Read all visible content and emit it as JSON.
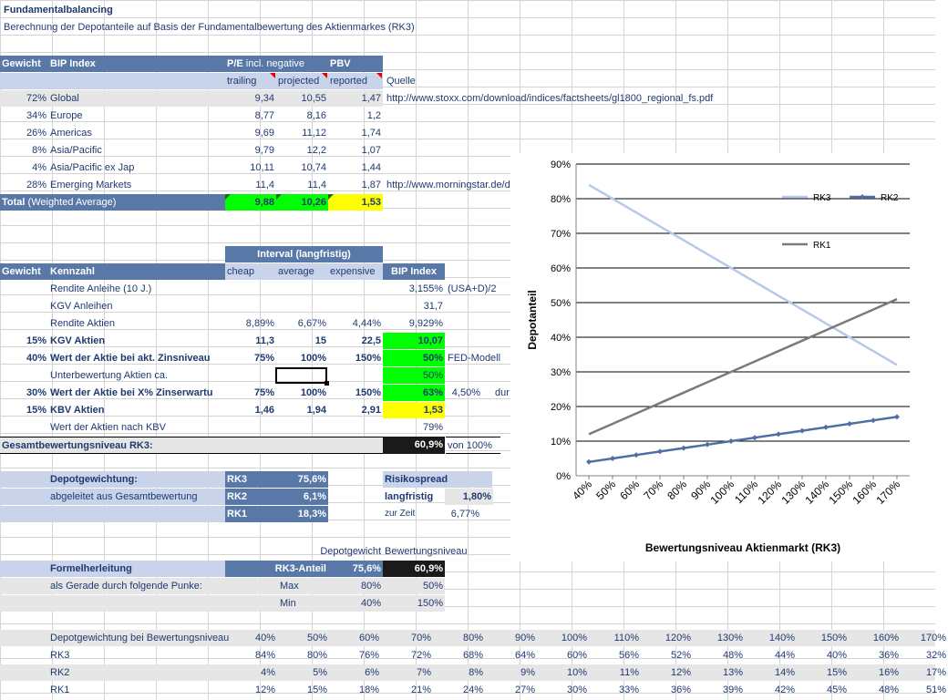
{
  "title": "Fundamentalbalancing",
  "subtitle": "Berechnung der Depotanteile auf Basis der Fundamentalbewertung des Aktienmarkes (RK3)",
  "t1": {
    "h_gewicht": "Gewicht",
    "h_bip": "BIP Index",
    "h_pe": "P/E",
    "h_pe_sub": "incl. negative",
    "h_pbv": "PBV",
    "h_trailing": "trailing",
    "h_projected": "projected",
    "h_reported": "reported",
    "h_quelle": "Quelle",
    "rows": [
      {
        "gewicht": "72%",
        "name": "Global",
        "trailing": "9,34",
        "projected": "10,55",
        "reported": "1,47",
        "quelle": "http://www.stoxx.com/download/indices/factsheets/gl1800_regional_fs.pdf"
      },
      {
        "gewicht": "34%",
        "name": "Europe",
        "trailing": "8,77",
        "projected": "8,16",
        "reported": "1,2",
        "quelle": ""
      },
      {
        "gewicht": "26%",
        "name": "Americas",
        "trailing": "9,69",
        "projected": "11,12",
        "reported": "1,74",
        "quelle": ""
      },
      {
        "gewicht": "8%",
        "name": "Asia/Pacific",
        "trailing": "9,79",
        "projected": "12,2",
        "reported": "1,07",
        "quelle": ""
      },
      {
        "gewicht": "4%",
        "name": "Asia/Pacific ex Jap",
        "trailing": "10,11",
        "projected": "10,74",
        "reported": "1,44",
        "quelle": ""
      },
      {
        "gewicht": "28%",
        "name": "Emerging Markets",
        "trailing": "11,4",
        "projected": "11,4",
        "reported": "1,87",
        "quelle": "http://www.morningstar.de/de"
      }
    ],
    "total_label": "Total",
    "total_sub": "(Weighted Average)",
    "total_trailing": "9,88",
    "total_projected": "10,26",
    "total_reported": "1,53"
  },
  "t2": {
    "interval": "Interval (langfristig)",
    "h_gewicht": "Gewicht",
    "h_kennzahl": "Kennzahl",
    "h_cheap": "cheap",
    "h_average": "average",
    "h_expensive": "expensive",
    "h_bip": "BIP Index",
    "rows": [
      {
        "gewicht": "",
        "name": "Rendite Anleihe (10 J.)",
        "cheap": "",
        "average": "",
        "expensive": "",
        "bip": "3,155%",
        "note": "(USA+D)/2",
        "bold": false,
        "bg": ""
      },
      {
        "gewicht": "",
        "name": "KGV Anleihen",
        "cheap": "",
        "average": "",
        "expensive": "",
        "bip": "31,7",
        "note": "",
        "bold": false,
        "bg": ""
      },
      {
        "gewicht": "",
        "name": "Rendite Aktien",
        "cheap": "8,89%",
        "average": "6,67%",
        "expensive": "4,44%",
        "bip": "9,929%",
        "note": "",
        "bold": false,
        "bg": ""
      },
      {
        "gewicht": "15%",
        "name": "KGV Aktien",
        "cheap": "11,3",
        "average": "15",
        "expensive": "22,5",
        "bip": "10,07",
        "note": "",
        "bold": true,
        "bg": "grn"
      },
      {
        "gewicht": "40%",
        "name": "Wert der Aktie bei akt. Zinsniveau",
        "cheap": "75%",
        "average": "100%",
        "expensive": "150%",
        "bip": "50%",
        "note": "FED-Modell",
        "bold": true,
        "bg": "grn"
      },
      {
        "gewicht": "",
        "name": "Unterbewertung Aktien ca.",
        "cheap": "",
        "average": "",
        "expensive": "",
        "bip": "50%",
        "note": "",
        "bold": false,
        "bg": "grn"
      },
      {
        "gewicht": "30%",
        "name": "Wert der Aktie bei X% Zinserwartu",
        "cheap": "75%",
        "average": "100%",
        "expensive": "150%",
        "bip": "63%",
        "note": "4,50%",
        "note2": "dur",
        "bold": true,
        "bg": "grn"
      },
      {
        "gewicht": "15%",
        "name": "KBV Aktien",
        "cheap": "1,46",
        "average": "1,94",
        "expensive": "2,91",
        "bip": "1,53",
        "note": "",
        "bold": true,
        "bg": "yel"
      },
      {
        "gewicht": "",
        "name": "Wert der Aktien nach KBV",
        "cheap": "",
        "average": "",
        "expensive": "",
        "bip": "79%",
        "note": "",
        "bold": false,
        "bg": ""
      }
    ],
    "gesamt_label": "Gesamtbewertungsniveau RK3:",
    "gesamt_value": "60,9%",
    "gesamt_note": "von 100%"
  },
  "depot": {
    "title": "Depotgewichtung:",
    "sub": "abgeleitet aus Gesamtbewertung",
    "rows": [
      {
        "name": "RK3",
        "value": "75,6%"
      },
      {
        "name": "RK2",
        "value": "6,1%"
      },
      {
        "name": "RK1",
        "value": "18,3%"
      }
    ],
    "risk_title": "Risikospread",
    "risk_lang": "langfristig",
    "risk_lang_val": "1,80%",
    "risk_zeit": "zur Zeit",
    "risk_zeit_val": "6,77%"
  },
  "formel": {
    "h_depot": "Depotgewicht",
    "h_bew": "Bewertungsniveau",
    "title": "Formelherleitung",
    "rk3": "RK3-Anteil",
    "rk3_val": "75,6%",
    "bew_val": "60,9%",
    "sub": "als Gerade durch folgende Punke:",
    "max_label": "Max",
    "max_depot": "80%",
    "max_bew": "50%",
    "min_label": "Min",
    "min_depot": "40%",
    "min_bew": "150%"
  },
  "bottom": {
    "label": "Depotgewichtung bei Bewertungsniveau",
    "levels": [
      "40%",
      "50%",
      "60%",
      "70%",
      "80%",
      "90%",
      "100%",
      "110%",
      "120%",
      "130%",
      "140%",
      "150%",
      "160%",
      "170%"
    ],
    "rows": [
      {
        "name": "RK3",
        "values": [
          "84%",
          "80%",
          "76%",
          "72%",
          "68%",
          "64%",
          "60%",
          "56%",
          "52%",
          "48%",
          "44%",
          "40%",
          "36%",
          "32%"
        ]
      },
      {
        "name": "RK2",
        "values": [
          "4%",
          "5%",
          "6%",
          "7%",
          "8%",
          "9%",
          "10%",
          "11%",
          "12%",
          "13%",
          "14%",
          "15%",
          "16%",
          "17%"
        ]
      },
      {
        "name": "RK1",
        "values": [
          "12%",
          "15%",
          "18%",
          "21%",
          "24%",
          "27%",
          "30%",
          "33%",
          "36%",
          "39%",
          "42%",
          "45%",
          "48%",
          "51%"
        ]
      }
    ]
  },
  "chart_data": {
    "type": "line",
    "x": [
      "40%",
      "50%",
      "60%",
      "70%",
      "80%",
      "90%",
      "100%",
      "110%",
      "120%",
      "130%",
      "140%",
      "150%",
      "160%",
      "170%"
    ],
    "series": [
      {
        "name": "RK3",
        "values": [
          84,
          80,
          76,
          72,
          68,
          64,
          60,
          56,
          52,
          48,
          44,
          40,
          36,
          32
        ],
        "color": "#b8c8e8",
        "marker": "none"
      },
      {
        "name": "RK2",
        "values": [
          4,
          5,
          6,
          7,
          8,
          9,
          10,
          11,
          12,
          13,
          14,
          15,
          16,
          17
        ],
        "color": "#4f6fa3",
        "marker": "diamond"
      },
      {
        "name": "RK1",
        "values": [
          12,
          15,
          18,
          21,
          24,
          27,
          30,
          33,
          36,
          39,
          42,
          45,
          48,
          51
        ],
        "color": "#7a7a7a",
        "marker": "none"
      }
    ],
    "yticks": [
      "0%",
      "10%",
      "20%",
      "30%",
      "40%",
      "50%",
      "60%",
      "70%",
      "80%",
      "90%"
    ],
    "ylim": [
      0,
      90
    ],
    "xlabel": "Bewertungsniveau Aktienmarkt (RK3)",
    "ylabel": "Depotanteil",
    "grid": true,
    "legend": "top-right"
  }
}
